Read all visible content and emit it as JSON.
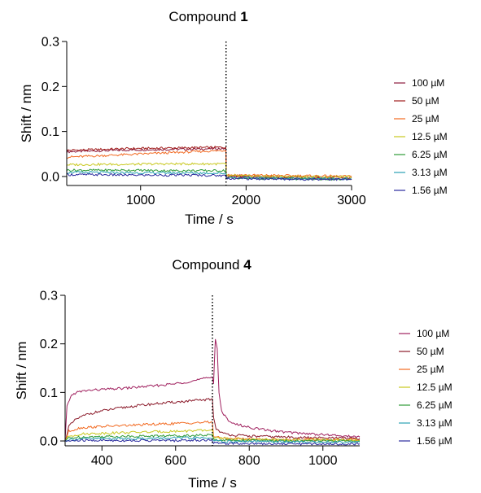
{
  "chart_data": [
    {
      "type": "line",
      "title": "Compound",
      "title_bold": "1",
      "xlabel": "Time / s",
      "ylabel": "Shift / nm",
      "xlim": [
        300,
        3000
      ],
      "ylim": [
        -0.02,
        0.3
      ],
      "xticks": [
        1000,
        2000,
        3000
      ],
      "yticks": [
        0.0,
        0.1,
        0.2,
        0.3
      ],
      "ytick_labels": [
        "0.0",
        "0.1",
        "0.2",
        "0.3"
      ],
      "dissociation_start": 1810,
      "grid": false,
      "legend_position": "right",
      "series": [
        {
          "name": "100 µM",
          "color": "#8b1a3c",
          "x": [
            300,
            600,
            900,
            1200,
            1500,
            1808,
            1812,
            2000,
            2400,
            2800,
            3000
          ],
          "y": [
            0.055,
            0.057,
            0.059,
            0.06,
            0.061,
            0.062,
            0.0,
            -0.002,
            -0.004,
            -0.005,
            -0.006
          ]
        },
        {
          "name": "50 µM",
          "color": "#a01c1c",
          "x": [
            300,
            600,
            900,
            1200,
            1500,
            1808,
            1812,
            2000,
            2400,
            2800,
            3000
          ],
          "y": [
            0.058,
            0.06,
            0.062,
            0.063,
            0.064,
            0.065,
            0.003,
            0.001,
            -0.001,
            -0.002,
            -0.003
          ]
        },
        {
          "name": "25 µM",
          "color": "#f26a21",
          "x": [
            300,
            600,
            900,
            1200,
            1500,
            1808,
            1812,
            2000,
            2400,
            2800,
            3000
          ],
          "y": [
            0.043,
            0.046,
            0.049,
            0.052,
            0.055,
            0.058,
            0.004,
            0.003,
            0.002,
            0.001,
            0.0
          ]
        },
        {
          "name": "12.5 µM",
          "color": "#c8c81e",
          "x": [
            300,
            600,
            900,
            1200,
            1500,
            1808,
            1812,
            2000,
            2400,
            2800,
            3000
          ],
          "y": [
            0.026,
            0.027,
            0.027,
            0.028,
            0.028,
            0.028,
            0.002,
            0.001,
            0.0,
            -0.001,
            -0.001
          ]
        },
        {
          "name": "6.25 µM",
          "color": "#2e9b37",
          "x": [
            300,
            600,
            900,
            1200,
            1500,
            1808,
            1812,
            2000,
            2400,
            2800,
            3000
          ],
          "y": [
            0.014,
            0.014,
            0.014,
            0.013,
            0.013,
            0.013,
            -0.003,
            -0.004,
            -0.005,
            -0.006,
            -0.007
          ]
        },
        {
          "name": "3.13 µM",
          "color": "#2aa1b3",
          "x": [
            300,
            600,
            900,
            1200,
            1500,
            1808,
            1812,
            2000,
            2400,
            2800,
            3000
          ],
          "y": [
            0.009,
            0.009,
            0.008,
            0.008,
            0.008,
            0.007,
            -0.002,
            -0.003,
            -0.004,
            -0.005,
            -0.005
          ]
        },
        {
          "name": "1.56 µM",
          "color": "#2a2a9e",
          "x": [
            300,
            600,
            900,
            1200,
            1500,
            1808,
            1812,
            2000,
            2400,
            2800,
            3000
          ],
          "y": [
            0.004,
            0.004,
            0.003,
            0.003,
            0.003,
            0.002,
            -0.004,
            -0.005,
            -0.006,
            -0.006,
            -0.007
          ]
        }
      ]
    },
    {
      "type": "line",
      "title": "Compound",
      "title_bold": "4",
      "xlabel": "Time / s",
      "ylabel": "Shift / nm",
      "xlim": [
        300,
        1100
      ],
      "ylim": [
        -0.01,
        0.3
      ],
      "xticks": [
        400,
        600,
        800,
        1000
      ],
      "yticks": [
        0.0,
        0.1,
        0.2,
        0.3
      ],
      "ytick_labels": [
        "0.0",
        "0.1",
        "0.2",
        "0.3"
      ],
      "dissociation_start": 700,
      "grid": false,
      "legend_position": "right",
      "series": [
        {
          "name": "100 µM",
          "color": "#a0215f",
          "x": [
            300,
            305,
            315,
            330,
            360,
            400,
            450,
            500,
            550,
            600,
            650,
            700,
            703,
            708,
            713,
            718,
            725,
            740,
            760,
            800,
            850,
            900,
            1000,
            1100
          ],
          "y": [
            0.0,
            0.07,
            0.092,
            0.1,
            0.104,
            0.106,
            0.108,
            0.111,
            0.114,
            0.118,
            0.124,
            0.132,
            0.12,
            0.21,
            0.19,
            0.1,
            0.06,
            0.045,
            0.035,
            0.028,
            0.022,
            0.018,
            0.013,
            0.008
          ]
        },
        {
          "name": "50 µM",
          "color": "#8b1a2a",
          "x": [
            300,
            310,
            330,
            360,
            400,
            450,
            500,
            550,
            600,
            650,
            700,
            703,
            710,
            730,
            760,
            800,
            900,
            1000,
            1100
          ],
          "y": [
            0.0,
            0.03,
            0.045,
            0.055,
            0.062,
            0.068,
            0.073,
            0.077,
            0.08,
            0.083,
            0.086,
            0.05,
            0.025,
            0.015,
            0.012,
            0.01,
            0.008,
            0.006,
            0.005
          ]
        },
        {
          "name": "25 µM",
          "color": "#f26a21",
          "x": [
            300,
            310,
            340,
            400,
            500,
            600,
            700,
            703,
            720,
            760,
            800,
            900,
            1000,
            1100
          ],
          "y": [
            0.0,
            0.02,
            0.027,
            0.03,
            0.033,
            0.036,
            0.039,
            0.01,
            0.006,
            0.005,
            0.004,
            0.003,
            0.003,
            0.002
          ]
        },
        {
          "name": "12.5 µM",
          "color": "#c8c81e",
          "x": [
            300,
            310,
            340,
            400,
            500,
            600,
            700,
            703,
            720,
            800,
            900,
            1000,
            1100
          ],
          "y": [
            0.0,
            0.01,
            0.014,
            0.016,
            0.018,
            0.02,
            0.022,
            0.008,
            0.005,
            0.003,
            0.002,
            0.002,
            0.001
          ]
        },
        {
          "name": "6.25 µM",
          "color": "#2e9b37",
          "x": [
            300,
            310,
            340,
            400,
            500,
            600,
            700,
            703,
            720,
            800,
            900,
            1000,
            1100
          ],
          "y": [
            0.0,
            0.006,
            0.008,
            0.009,
            0.01,
            0.011,
            0.012,
            0.003,
            0.002,
            0.001,
            0.0,
            0.0,
            0.0
          ]
        },
        {
          "name": "3.13 µM",
          "color": "#2aa1b3",
          "x": [
            300,
            310,
            340,
            400,
            500,
            600,
            700,
            703,
            720,
            800,
            900,
            1000,
            1100
          ],
          "y": [
            0.0,
            0.003,
            0.004,
            0.005,
            0.005,
            0.006,
            0.006,
            0.0,
            -0.001,
            -0.001,
            -0.002,
            -0.002,
            -0.002
          ]
        },
        {
          "name": "1.56 µM",
          "color": "#2a2a9e",
          "x": [
            300,
            310,
            340,
            400,
            500,
            600,
            700,
            703,
            720,
            800,
            900,
            1000,
            1100
          ],
          "y": [
            0.0,
            0.0,
            0.001,
            0.001,
            0.001,
            0.001,
            0.002,
            -0.004,
            -0.005,
            -0.005,
            -0.006,
            -0.006,
            -0.006
          ]
        }
      ]
    }
  ]
}
